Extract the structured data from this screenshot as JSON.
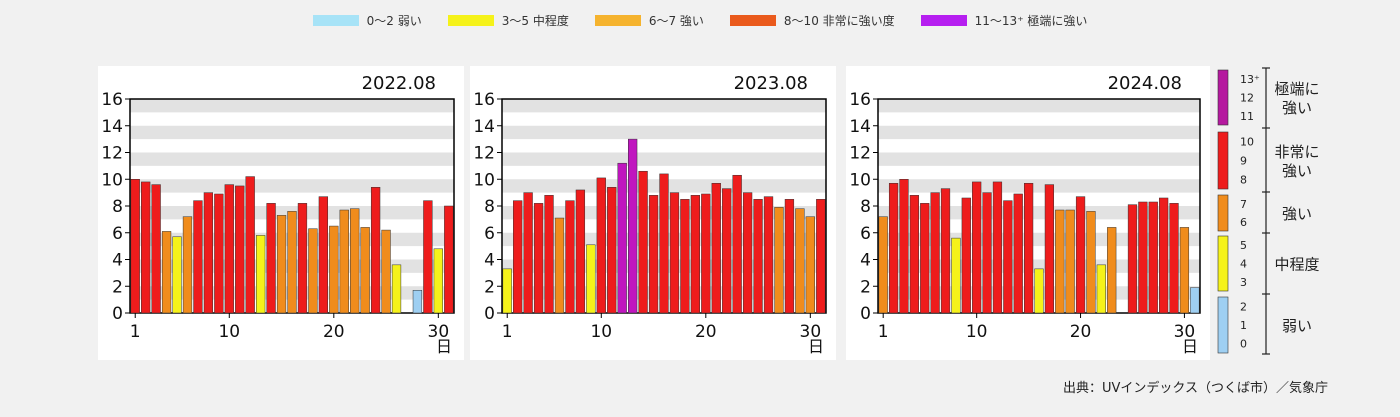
{
  "legend": [
    {
      "label": "0〜2 弱い",
      "color": "#a7e3f7"
    },
    {
      "label": "3〜5 中程度",
      "color": "#f5f21a"
    },
    {
      "label": "6〜7 強い",
      "color": "#f5b32e"
    },
    {
      "label": "8〜10 非常に強い度",
      "color": "#ea5a1c"
    },
    {
      "label": "11〜13⁺ 極端に強い",
      "color": "#b61ff0"
    }
  ],
  "scale": {
    "categories": [
      {
        "label": "極端に強い",
        "lines": [
          "極端に",
          "強い"
        ],
        "values": [
          "13⁺",
          "12",
          "11"
        ],
        "color": "#b5199f"
      },
      {
        "label": "非常に強い",
        "lines": [
          "非常に",
          "強い"
        ],
        "values": [
          "10",
          "9",
          "8"
        ],
        "color": "#ee1c1c"
      },
      {
        "label": "強い",
        "lines": [
          "強い"
        ],
        "values": [
          "7",
          "6"
        ],
        "color": "#f08c1c"
      },
      {
        "label": "中程度",
        "lines": [
          "中程度"
        ],
        "values": [
          "5",
          "4",
          "3"
        ],
        "color": "#f5f21a"
      },
      {
        "label": "弱い",
        "lines": [
          "弱い"
        ],
        "values": [
          "2",
          "1",
          "0"
        ],
        "color": "#9ecff2"
      }
    ]
  },
  "source": "出典：UVインデックス（つくば市）／気象庁",
  "chart_data": [
    {
      "type": "bar",
      "title": "2022.08",
      "xlabel": "日",
      "ylim": [
        0,
        16
      ],
      "yticks": [
        0,
        2,
        4,
        6,
        8,
        10,
        12,
        14,
        16
      ],
      "xticks": [
        1,
        10,
        20,
        30
      ],
      "x": [
        1,
        2,
        3,
        4,
        5,
        6,
        7,
        8,
        9,
        10,
        11,
        12,
        13,
        14,
        15,
        16,
        17,
        18,
        19,
        20,
        21,
        22,
        23,
        24,
        25,
        26,
        27,
        28,
        29,
        30,
        31
      ],
      "values": [
        10.0,
        9.8,
        9.6,
        6.1,
        5.7,
        7.2,
        8.4,
        9.0,
        8.9,
        9.6,
        9.5,
        10.2,
        5.8,
        8.2,
        7.3,
        7.6,
        8.2,
        6.3,
        8.7,
        6.5,
        7.7,
        7.8,
        6.4,
        9.4,
        6.2,
        3.6,
        null,
        1.7,
        8.4,
        4.8,
        8.0
      ],
      "values_note_hidden": null
    },
    {
      "type": "bar",
      "title": "2023.08",
      "xlabel": "日",
      "ylim": [
        0,
        16
      ],
      "yticks": [
        0,
        2,
        4,
        6,
        8,
        10,
        12,
        14,
        16
      ],
      "xticks": [
        1,
        10,
        20,
        30
      ],
      "x": [
        1,
        2,
        3,
        4,
        5,
        6,
        7,
        8,
        9,
        10,
        11,
        12,
        13,
        14,
        15,
        16,
        17,
        18,
        19,
        20,
        21,
        22,
        23,
        24,
        25,
        26,
        27,
        28,
        29,
        30,
        31
      ],
      "values": [
        3.3,
        8.4,
        9.0,
        8.2,
        8.8,
        7.1,
        8.4,
        9.2,
        5.1,
        10.1,
        9.4,
        11.2,
        13.0,
        10.6,
        8.8,
        10.4,
        9.0,
        8.5,
        8.8,
        8.9,
        9.7,
        9.3,
        10.3,
        9.0,
        8.5,
        8.7,
        7.9,
        8.5,
        7.8,
        7.2,
        8.5
      ]
    },
    {
      "type": "bar",
      "title": "2024.08",
      "xlabel": "日",
      "ylim": [
        0,
        16
      ],
      "yticks": [
        0,
        2,
        4,
        6,
        8,
        10,
        12,
        14,
        16
      ],
      "xticks": [
        1,
        10,
        20,
        30
      ],
      "x": [
        1,
        2,
        3,
        4,
        5,
        6,
        7,
        8,
        9,
        10,
        11,
        12,
        13,
        14,
        15,
        16,
        17,
        18,
        19,
        20,
        21,
        22,
        23,
        24,
        25,
        26,
        27,
        28,
        29,
        30,
        31
      ],
      "values": [
        7.2,
        9.7,
        10.0,
        8.8,
        8.2,
        9.0,
        9.3,
        5.6,
        8.6,
        9.8,
        9.0,
        9.8,
        8.4,
        8.9,
        9.7,
        3.3,
        9.6,
        7.7,
        7.7,
        8.7,
        7.6,
        3.6,
        6.4,
        null,
        8.1,
        8.3,
        8.3,
        8.6,
        8.2,
        6.4,
        1.9
      ]
    }
  ]
}
